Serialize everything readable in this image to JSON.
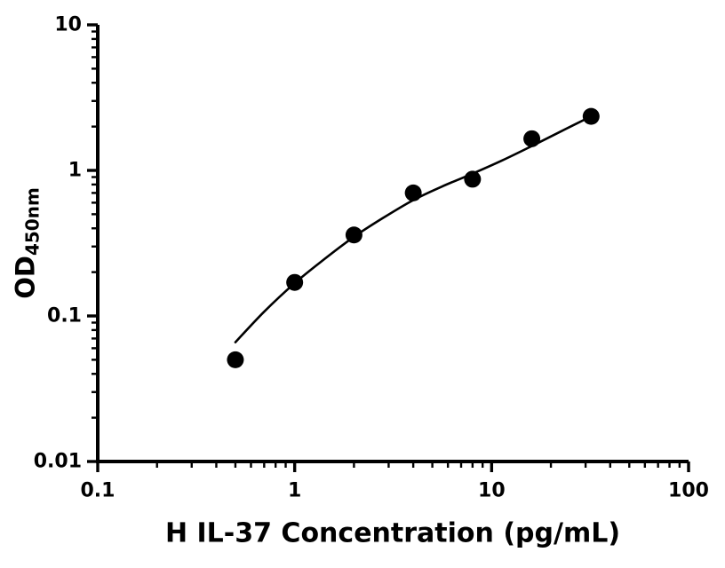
{
  "figure": {
    "background": "#ffffff"
  },
  "chart_data": {
    "type": "scatter",
    "title": "",
    "xlabel": "H IL-37 Concentration (pg/mL)",
    "ylabel": "OD450nm",
    "ylabel_main": "OD",
    "ylabel_sub": "450nm",
    "xscale": "log",
    "yscale": "log",
    "xlim": [
      0.1,
      100
    ],
    "ylim": [
      0.01,
      10
    ],
    "grid": false,
    "legend": null,
    "x_ticks": {
      "values": [
        0.1,
        1,
        10,
        100
      ],
      "labels": [
        "0.1",
        "1",
        "10",
        "100"
      ]
    },
    "y_ticks": {
      "values": [
        0.01,
        0.1,
        1,
        10
      ],
      "labels": [
        "0.01",
        "0.1",
        "1",
        "10"
      ]
    },
    "minor_ticks": true,
    "axis_color": "#000000",
    "text_color": "#000000",
    "series": [
      {
        "name": "standard-points",
        "type": "scatter",
        "marker": "circle",
        "marker_color": "#000000",
        "marker_radius": 9.5,
        "x": [
          0.5,
          1,
          2,
          4,
          8,
          16,
          32
        ],
        "y": [
          0.05,
          0.17,
          0.36,
          0.7,
          0.87,
          1.65,
          2.35
        ]
      },
      {
        "name": "fit-curve",
        "type": "line",
        "line_color": "#000000",
        "line_width": 2.6,
        "x": [
          0.5,
          0.7,
          1.0,
          1.4,
          2.0,
          2.8,
          4.0,
          5.6,
          8.0,
          11.3,
          16,
          22.6,
          32
        ],
        "y": [
          0.066,
          0.107,
          0.168,
          0.243,
          0.35,
          0.47,
          0.625,
          0.775,
          0.95,
          1.17,
          1.47,
          1.86,
          2.35
        ]
      }
    ]
  }
}
